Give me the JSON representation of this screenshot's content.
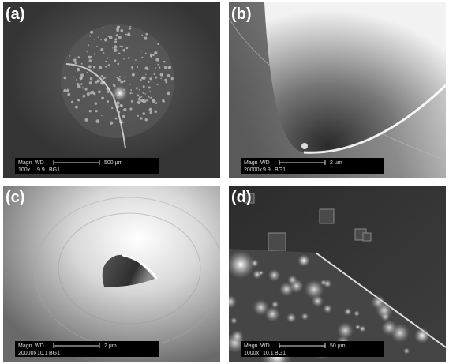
{
  "panels": [
    {
      "label": "(a)",
      "info": {
        "magn_label": "Magn",
        "wd_label": "WD",
        "magn": "100x",
        "wd": "9.9",
        "detector": "BG1",
        "scale": "500 µm"
      }
    },
    {
      "label": "(b)",
      "info": {
        "magn_label": "Magn",
        "wd_label": "WD",
        "magn": "20000x",
        "wd": "9.9",
        "detector": "BG1",
        "scale": "2 µm"
      }
    },
    {
      "label": "(c)",
      "info": {
        "magn_label": "Magn",
        "wd_label": "WD",
        "magn": "20000x",
        "wd": "10.1",
        "detector": "BG1",
        "scale": "2 µm"
      }
    },
    {
      "label": "(d)",
      "info": {
        "magn_label": "Magn",
        "wd_label": "WD",
        "magn": "1000x",
        "wd": "10.1",
        "detector": "BG1",
        "scale": "50 µm"
      }
    }
  ]
}
